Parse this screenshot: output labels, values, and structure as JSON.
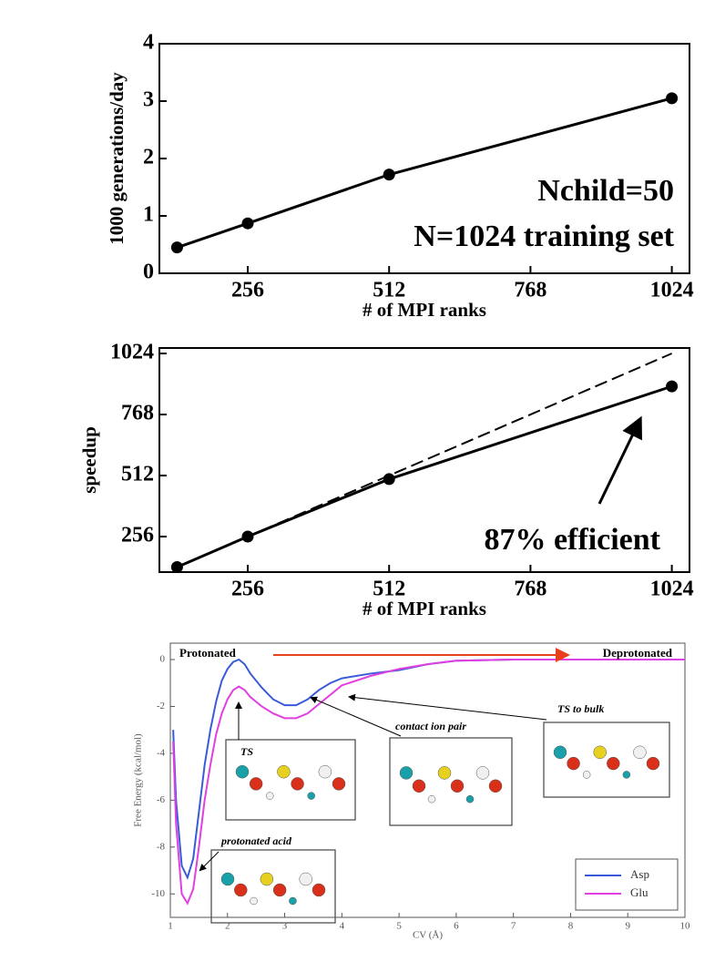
{
  "chart_data": [
    {
      "type": "line",
      "x_label": "# of MPI ranks",
      "y_label": "1000 generations/day",
      "x": [
        128,
        256,
        512,
        1024
      ],
      "series": [
        {
          "color": "#000000",
          "values": [
            0.45,
            0.87,
            1.72,
            3.05
          ]
        }
      ],
      "markers": true,
      "xlim": [
        96,
        1056
      ],
      "xticks": [
        256,
        512,
        768,
        1024
      ],
      "ylim": [
        0,
        4
      ],
      "yticks": [
        0,
        1,
        2,
        3,
        4
      ],
      "annotations": [
        "Nchild=50",
        "N=1024 training set"
      ]
    },
    {
      "type": "line",
      "x_label": "# of MPI ranks",
      "y_label": "speedup",
      "x": [
        128,
        256,
        512,
        1024
      ],
      "series": [
        {
          "color": "#000000",
          "values": [
            128,
            256,
            497,
            886
          ]
        },
        {
          "color": "#000000",
          "line_style": "dashed",
          "values": [
            128,
            256,
            512,
            1024
          ]
        }
      ],
      "markers": true,
      "xlim": [
        96,
        1056
      ],
      "xticks": [
        256,
        512,
        768,
        1024
      ],
      "ylim": [
        107,
        1047
      ],
      "yticks": [
        256,
        512,
        768,
        1024
      ],
      "annotations": [
        "87% efficient"
      ]
    },
    {
      "type": "line",
      "x_label": "CV (Å)",
      "y_label": "Free Energy (kcal/mol)",
      "x": [
        1.05,
        1.1,
        1.2,
        1.3,
        1.4,
        1.5,
        1.6,
        1.7,
        1.8,
        1.9,
        2.0,
        2.1,
        2.2,
        2.3,
        2.4,
        2.6,
        2.8,
        3.0,
        3.2,
        3.4,
        3.6,
        3.8,
        4.0,
        4.5,
        5,
        5.5,
        6,
        7,
        8,
        9,
        10
      ],
      "series": [
        {
          "name": "Asp",
          "color": "#3a5bd9",
          "values": [
            -3.0,
            -6,
            -8.8,
            -9.3,
            -8.5,
            -6.5,
            -4.5,
            -3.0,
            -1.8,
            -0.9,
            -0.4,
            -0.1,
            0.0,
            -0.2,
            -0.6,
            -1.2,
            -1.7,
            -1.95,
            -1.95,
            -1.7,
            -1.3,
            -1.0,
            -0.8,
            -0.6,
            -0.45,
            -0.2,
            -0.05,
            0,
            0,
            0,
            0
          ]
        },
        {
          "name": "Glu",
          "color": "#e040e0",
          "values": [
            -3.5,
            -7,
            -10,
            -10.4,
            -9.8,
            -8,
            -6,
            -4.5,
            -3.2,
            -2.3,
            -1.7,
            -1.3,
            -1.15,
            -1.3,
            -1.6,
            -2.0,
            -2.3,
            -2.5,
            -2.5,
            -2.3,
            -1.9,
            -1.5,
            -1.1,
            -0.7,
            -0.4,
            -0.2,
            -0.05,
            0,
            0,
            0,
            0
          ]
        }
      ],
      "markers": false,
      "legend": "lower right",
      "xlim": [
        1,
        10
      ],
      "xticks": [
        1,
        2,
        3,
        4,
        5,
        6,
        7,
        8,
        9,
        10
      ],
      "ylim": [
        -11,
        0.7
      ],
      "yticks": [
        -10,
        -8,
        -6,
        -4,
        -2,
        0
      ],
      "annotations": [
        "Protonated",
        "Deprotonated",
        "TS",
        "contact ion pair",
        "TS to bulk",
        "protonated acid"
      ]
    }
  ]
}
